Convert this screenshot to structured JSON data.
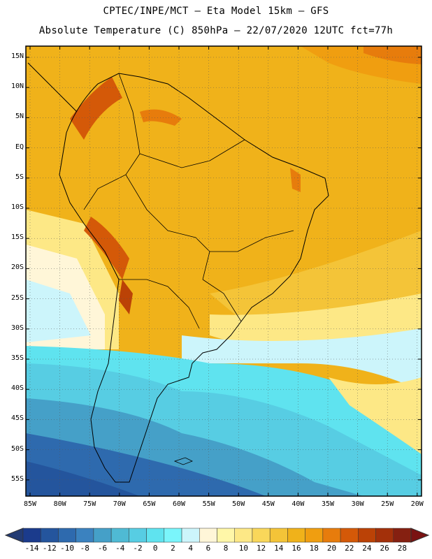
{
  "header": {
    "line1": "CPTEC/INPE/MCT –  Eta Model 15km – GFS",
    "line2": "Absolute Temperature (C) 850hPa – 22/07/2020 12UTC fct=77h"
  },
  "map": {
    "lat_labels": [
      "15N",
      "10N",
      "5N",
      "EQ",
      "5S",
      "10S",
      "15S",
      "20S",
      "25S",
      "30S",
      "35S",
      "40S",
      "45S",
      "50S",
      "55S"
    ],
    "lon_labels": [
      "85W",
      "80W",
      "75W",
      "70W",
      "65W",
      "60W",
      "55W",
      "50W",
      "45W",
      "40W",
      "35W",
      "30W",
      "25W",
      "20W"
    ],
    "grid": "dotted"
  },
  "colorbar": {
    "labels": [
      "-14",
      "-12",
      "-10",
      "-8",
      "-6",
      "-4",
      "-2",
      "0",
      "2",
      "4",
      "6",
      "8",
      "10",
      "12",
      "14",
      "16",
      "18",
      "20",
      "22",
      "24",
      "26",
      "28"
    ],
    "colors": [
      "#1b3b8c",
      "#24559d",
      "#2e6aae",
      "#3b82bf",
      "#45a0c8",
      "#4fbad4",
      "#57cde3",
      "#5fe3ef",
      "#7af5fb",
      "#ccf5fb",
      "#fff6d8",
      "#fff7a8",
      "#fde886",
      "#f9d75a",
      "#f4c438",
      "#f0b21a",
      "#f09e10",
      "#e77c0c",
      "#d45908",
      "#bb4206",
      "#a3300a",
      "#852011"
    ],
    "end_low": "#233b73",
    "end_high": "#7a1212"
  }
}
